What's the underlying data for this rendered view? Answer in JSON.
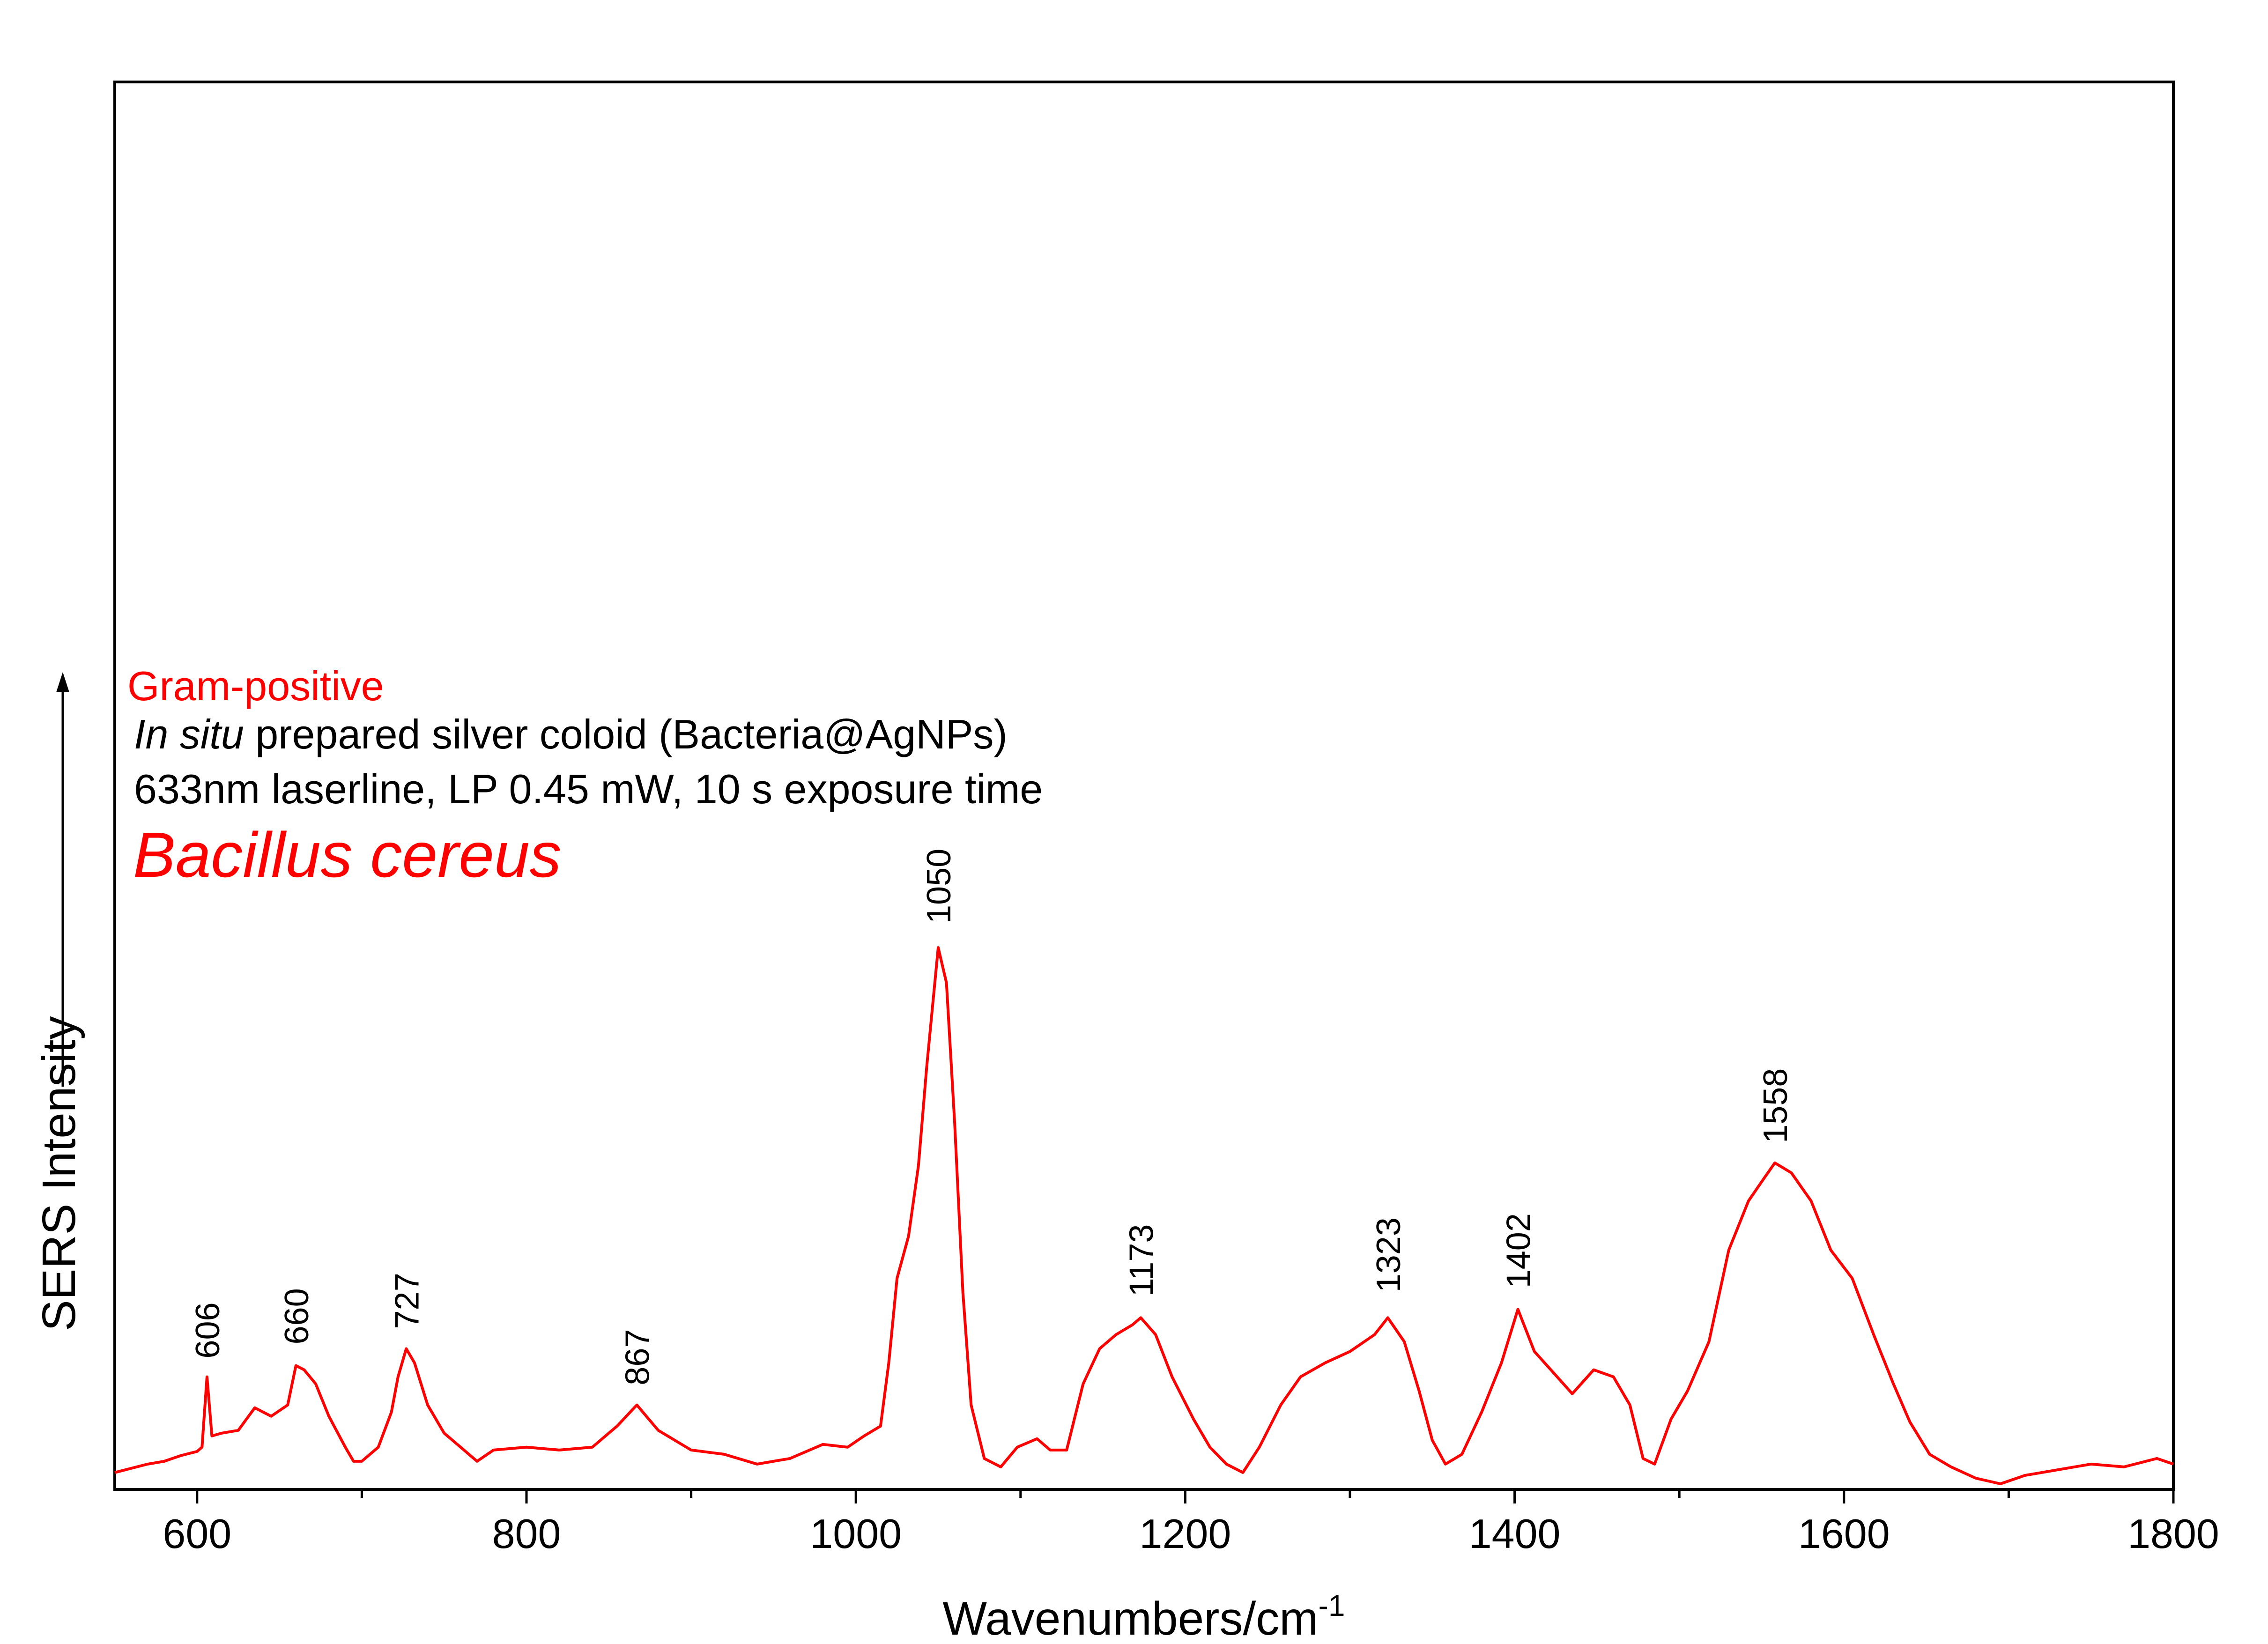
{
  "chart_data": {
    "type": "line",
    "xlabel_main": "Wavenumbers/cm",
    "xlabel_sup": "-1",
    "ylabel": "SERS Intensity",
    "xlim": [
      550,
      1800
    ],
    "ylim": [
      0,
      1
    ],
    "x_ticks": [
      600,
      800,
      1000,
      1200,
      1400,
      1600,
      1800
    ],
    "x_minor_ticks": [
      700,
      900,
      1100,
      1300,
      1500,
      1700
    ],
    "grid": false,
    "colors": {
      "line": "#ff0000",
      "axis": "#000000",
      "red_text": "#ff0000"
    },
    "annotations": {
      "category": "Gram-positive",
      "line2_italic": "In situ",
      "line2_rest": " prepared silver coloid (Bacteria@AgNPs)",
      "line3": "633nm laserline, LP 0.45 mW, 10 s exposure time",
      "species": "Bacillus cereus"
    },
    "peak_labels": [
      {
        "x": 606,
        "y": 0.083,
        "label": "606"
      },
      {
        "x": 660,
        "y": 0.093,
        "label": "660"
      },
      {
        "x": 727,
        "y": 0.104,
        "label": "727"
      },
      {
        "x": 867,
        "y": 0.064,
        "label": "867"
      },
      {
        "x": 1050,
        "y": 0.392,
        "label": "1050"
      },
      {
        "x": 1173,
        "y": 0.127,
        "label": "1173"
      },
      {
        "x": 1323,
        "y": 0.13,
        "label": "1323"
      },
      {
        "x": 1402,
        "y": 0.133,
        "label": "1402"
      },
      {
        "x": 1558,
        "y": 0.236,
        "label": "1558"
      }
    ],
    "series": [
      {
        "values_xy": [
          [
            550,
            0.012
          ],
          [
            560,
            0.015
          ],
          [
            570,
            0.018
          ],
          [
            580,
            0.02
          ],
          [
            590,
            0.024
          ],
          [
            600,
            0.027
          ],
          [
            603,
            0.03
          ],
          [
            606,
            0.08
          ],
          [
            609,
            0.038
          ],
          [
            615,
            0.04
          ],
          [
            625,
            0.042
          ],
          [
            635,
            0.058
          ],
          [
            645,
            0.052
          ],
          [
            655,
            0.06
          ],
          [
            660,
            0.088
          ],
          [
            665,
            0.085
          ],
          [
            672,
            0.075
          ],
          [
            680,
            0.052
          ],
          [
            690,
            0.03
          ],
          [
            695,
            0.02
          ],
          [
            700,
            0.02
          ],
          [
            710,
            0.03
          ],
          [
            718,
            0.055
          ],
          [
            722,
            0.08
          ],
          [
            727,
            0.1
          ],
          [
            732,
            0.09
          ],
          [
            740,
            0.06
          ],
          [
            750,
            0.04
          ],
          [
            760,
            0.03
          ],
          [
            770,
            0.02
          ],
          [
            780,
            0.028
          ],
          [
            800,
            0.03
          ],
          [
            820,
            0.028
          ],
          [
            840,
            0.03
          ],
          [
            855,
            0.045
          ],
          [
            867,
            0.06
          ],
          [
            880,
            0.042
          ],
          [
            900,
            0.028
          ],
          [
            920,
            0.025
          ],
          [
            940,
            0.018
          ],
          [
            960,
            0.022
          ],
          [
            980,
            0.032
          ],
          [
            995,
            0.03
          ],
          [
            1005,
            0.038
          ],
          [
            1015,
            0.045
          ],
          [
            1020,
            0.09
          ],
          [
            1025,
            0.15
          ],
          [
            1032,
            0.18
          ],
          [
            1038,
            0.23
          ],
          [
            1043,
            0.3
          ],
          [
            1050,
            0.385
          ],
          [
            1055,
            0.36
          ],
          [
            1060,
            0.26
          ],
          [
            1065,
            0.14
          ],
          [
            1070,
            0.06
          ],
          [
            1078,
            0.022
          ],
          [
            1088,
            0.016
          ],
          [
            1098,
            0.03
          ],
          [
            1110,
            0.036
          ],
          [
            1118,
            0.028
          ],
          [
            1128,
            0.028
          ],
          [
            1138,
            0.075
          ],
          [
            1148,
            0.1
          ],
          [
            1158,
            0.11
          ],
          [
            1168,
            0.117
          ],
          [
            1173,
            0.122
          ],
          [
            1182,
            0.11
          ],
          [
            1192,
            0.08
          ],
          [
            1205,
            0.05
          ],
          [
            1215,
            0.03
          ],
          [
            1225,
            0.018
          ],
          [
            1235,
            0.012
          ],
          [
            1245,
            0.03
          ],
          [
            1258,
            0.06
          ],
          [
            1270,
            0.08
          ],
          [
            1285,
            0.09
          ],
          [
            1300,
            0.098
          ],
          [
            1315,
            0.11
          ],
          [
            1323,
            0.122
          ],
          [
            1333,
            0.105
          ],
          [
            1342,
            0.07
          ],
          [
            1350,
            0.035
          ],
          [
            1358,
            0.018
          ],
          [
            1368,
            0.025
          ],
          [
            1380,
            0.055
          ],
          [
            1392,
            0.09
          ],
          [
            1402,
            0.128
          ],
          [
            1412,
            0.098
          ],
          [
            1422,
            0.085
          ],
          [
            1435,
            0.068
          ],
          [
            1448,
            0.085
          ],
          [
            1460,
            0.08
          ],
          [
            1470,
            0.06
          ],
          [
            1478,
            0.022
          ],
          [
            1485,
            0.018
          ],
          [
            1495,
            0.05
          ],
          [
            1505,
            0.07
          ],
          [
            1518,
            0.105
          ],
          [
            1530,
            0.17
          ],
          [
            1542,
            0.205
          ],
          [
            1552,
            0.222
          ],
          [
            1558,
            0.232
          ],
          [
            1568,
            0.225
          ],
          [
            1580,
            0.205
          ],
          [
            1592,
            0.17
          ],
          [
            1605,
            0.15
          ],
          [
            1618,
            0.11
          ],
          [
            1630,
            0.075
          ],
          [
            1640,
            0.048
          ],
          [
            1652,
            0.025
          ],
          [
            1665,
            0.016
          ],
          [
            1680,
            0.008
          ],
          [
            1695,
            0.004
          ],
          [
            1710,
            0.01
          ],
          [
            1730,
            0.014
          ],
          [
            1750,
            0.018
          ],
          [
            1770,
            0.016
          ],
          [
            1790,
            0.022
          ],
          [
            1800,
            0.018
          ]
        ]
      }
    ]
  }
}
